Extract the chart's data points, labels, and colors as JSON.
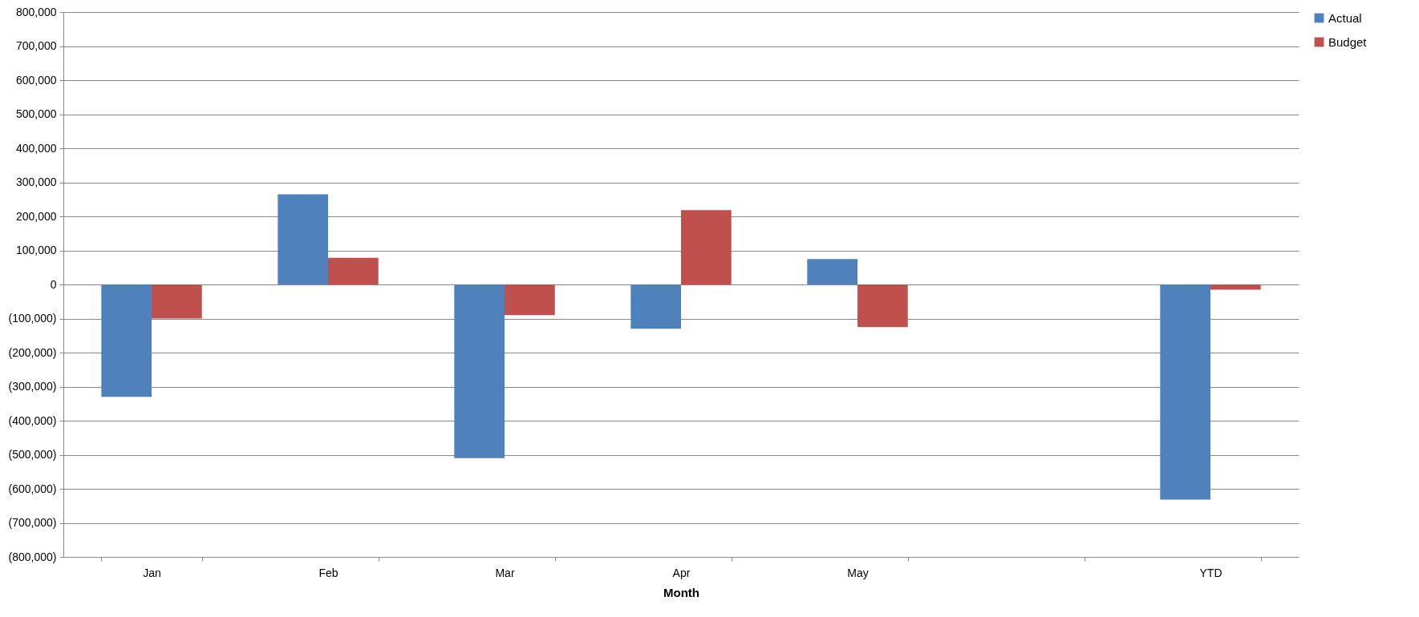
{
  "chart_data": {
    "type": "bar",
    "xlabel": "Month",
    "categories": [
      "Jan",
      "Feb",
      "Mar",
      "Apr",
      "May",
      null,
      "YTD"
    ],
    "series": [
      {
        "name": "Actual",
        "color": "#4f81bd",
        "values": [
          -330000,
          265000,
          -510000,
          -130000,
          75000,
          null,
          -632000
        ]
      },
      {
        "name": "Budget",
        "color": "#c0504d",
        "values": [
          -100000,
          78000,
          -90000,
          218000,
          -125000,
          null,
          -15000
        ]
      }
    ],
    "ylim": [
      -800000,
      800000
    ],
    "yticks": [
      {
        "value": -800000,
        "label": "(800,000)"
      },
      {
        "value": -700000,
        "label": "(700,000)"
      },
      {
        "value": -600000,
        "label": "(600,000)"
      },
      {
        "value": -500000,
        "label": "(500,000)"
      },
      {
        "value": -400000,
        "label": "(400,000)"
      },
      {
        "value": -300000,
        "label": "(300,000)"
      },
      {
        "value": -200000,
        "label": "(200,000)"
      },
      {
        "value": -100000,
        "label": "(100,000)"
      },
      {
        "value": 0,
        "label": "0"
      },
      {
        "value": 100000,
        "label": "100,000"
      },
      {
        "value": 200000,
        "label": "200,000"
      },
      {
        "value": 300000,
        "label": "300,000"
      },
      {
        "value": 400000,
        "label": "400,000"
      },
      {
        "value": 500000,
        "label": "500,000"
      },
      {
        "value": 600000,
        "label": "600,000"
      },
      {
        "value": 700000,
        "label": "700,000"
      },
      {
        "value": 800000,
        "label": "800,000"
      }
    ],
    "grid": "y",
    "legend": "right"
  }
}
